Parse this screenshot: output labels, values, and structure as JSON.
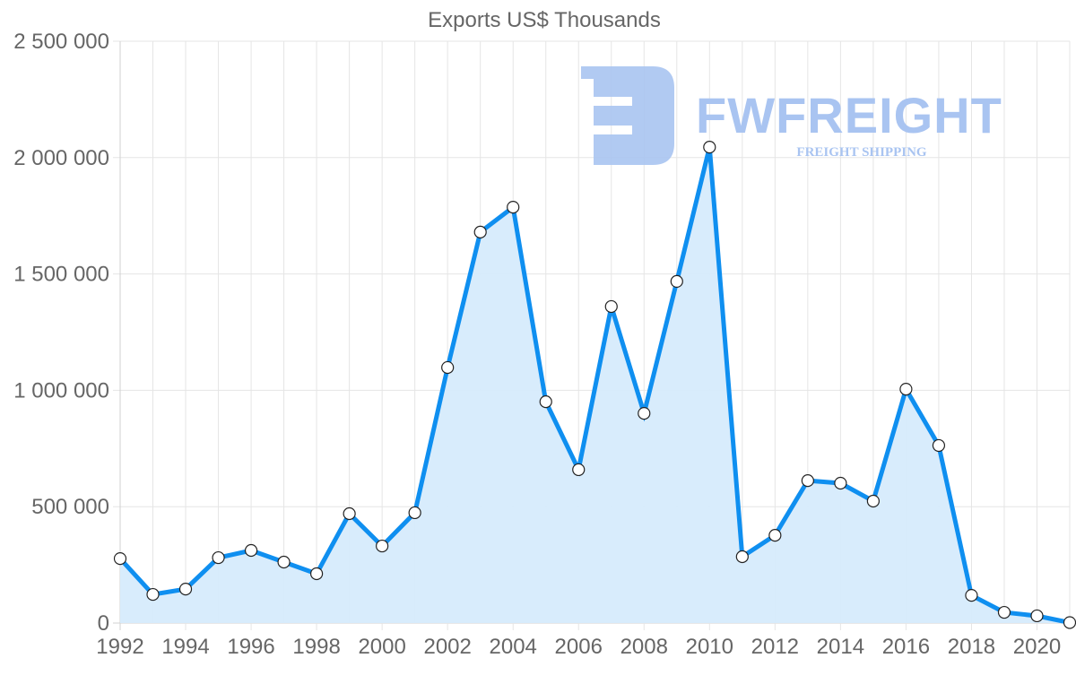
{
  "chart_data": {
    "type": "line",
    "title": "Exports US$ Thousands",
    "xlabel": "",
    "ylabel": "",
    "x": [
      1992,
      1993,
      1994,
      1995,
      1996,
      1997,
      1998,
      1999,
      2000,
      2001,
      2002,
      2003,
      2004,
      2005,
      2006,
      2007,
      2008,
      2009,
      2010,
      2011,
      2012,
      2013,
      2014,
      2015,
      2016,
      2017,
      2018,
      2019,
      2020,
      2021
    ],
    "series": [
      {
        "name": "Exports US$ Thousands",
        "values": [
          277000,
          123000,
          146000,
          281000,
          312000,
          262000,
          212000,
          470000,
          331000,
          474000,
          1098000,
          1680000,
          1787000,
          951000,
          659000,
          1360000,
          901000,
          1468000,
          2045000,
          285000,
          377000,
          612000,
          601000,
          524000,
          1005000,
          763000,
          119000,
          46000,
          31000,
          2000
        ],
        "color": "#0f8ff0",
        "fill": "#d6ebfc",
        "marker": "circle"
      }
    ],
    "ylim": [
      0,
      2500000
    ],
    "xlim": [
      1992,
      2021
    ],
    "yticks": [
      0,
      500000,
      1000000,
      1500000,
      2000000,
      2500000
    ],
    "ytick_labels": [
      "0",
      "500 000",
      "1 000 000",
      "1 500 000",
      "2 000 000",
      "2 500 000"
    ],
    "xtick_labels": [
      "1992",
      "1994",
      "1996",
      "1998",
      "2000",
      "2002",
      "2004",
      "2006",
      "2008",
      "2010",
      "2012",
      "2014",
      "2016",
      "2018",
      "2020"
    ],
    "grid": true,
    "legend": "none",
    "area_fill": true
  },
  "watermark": {
    "logo_letter": "F",
    "brand": "FWFREIGHT",
    "tagline": "FREIGHT SHIPPING",
    "color": "#a9c4f1"
  }
}
